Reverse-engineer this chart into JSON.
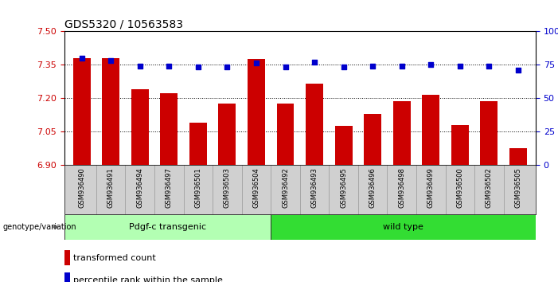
{
  "title": "GDS5320 / 10563583",
  "categories": [
    "GSM936490",
    "GSM936491",
    "GSM936494",
    "GSM936497",
    "GSM936501",
    "GSM936503",
    "GSM936504",
    "GSM936492",
    "GSM936493",
    "GSM936495",
    "GSM936496",
    "GSM936498",
    "GSM936499",
    "GSM936500",
    "GSM936502",
    "GSM936505"
  ],
  "bar_values": [
    7.38,
    7.38,
    7.24,
    7.22,
    7.09,
    7.175,
    7.375,
    7.175,
    7.265,
    7.075,
    7.13,
    7.185,
    7.215,
    7.08,
    7.185,
    6.975
  ],
  "dot_values": [
    80,
    78,
    74,
    74,
    73,
    73,
    76,
    73,
    77,
    73,
    74,
    74,
    75,
    74,
    74,
    71
  ],
  "ylim_left": [
    6.9,
    7.5
  ],
  "ylim_right": [
    0,
    100
  ],
  "yticks_left": [
    6.9,
    7.05,
    7.2,
    7.35,
    7.5
  ],
  "yticks_right": [
    0,
    25,
    50,
    75,
    100
  ],
  "bar_color": "#cc0000",
  "dot_color": "#0000cc",
  "group1_label": "Pdgf-c transgenic",
  "group2_label": "wild type",
  "group1_color": "#b3ffb3",
  "group2_color": "#33dd33",
  "group1_count": 7,
  "group2_count": 9,
  "legend_bar_label": "transformed count",
  "legend_dot_label": "percentile rank within the sample",
  "genotype_label": "genotype/variation",
  "tick_label_color_left": "#cc0000",
  "tick_label_color_right": "#0000cc",
  "background_color": "#ffffff",
  "xtick_bg_color": "#d0d0d0",
  "grid_color": "#000000",
  "title_fontsize": 10,
  "bar_width": 0.6
}
